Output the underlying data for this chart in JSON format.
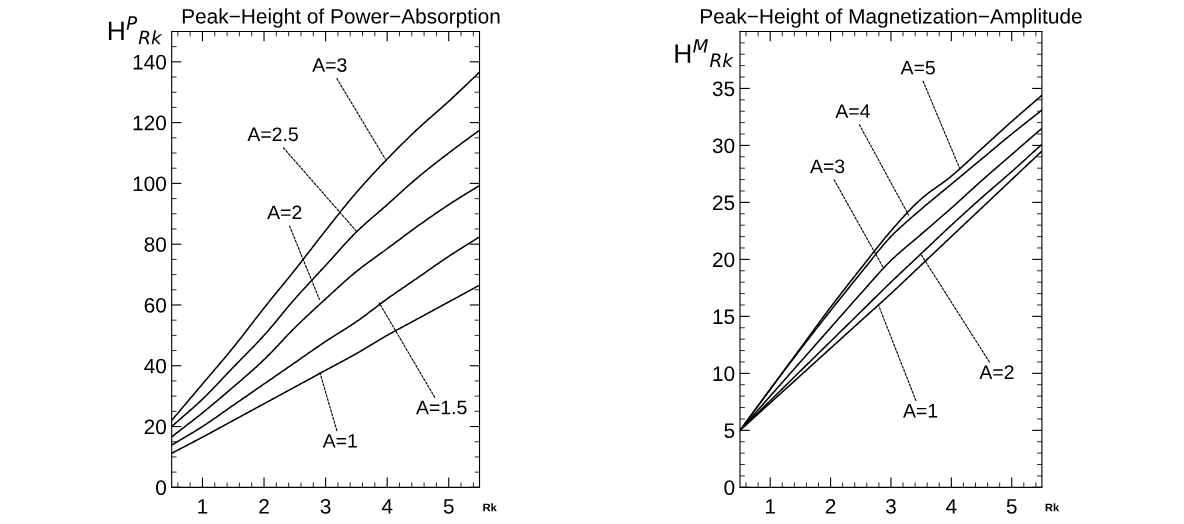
{
  "chart_data": [
    {
      "type": "line",
      "title": "Peak−Height of Power−Absorption",
      "ylabel": "H$^{P}$$_{Rk}$",
      "xlabel": "Rk",
      "x": [
        0.5,
        1,
        1.5,
        2,
        2.5,
        3,
        3.5,
        4,
        4.5,
        5,
        5.5
      ],
      "series": [
        {
          "color": "#000000",
          "values": [
            11.2,
            16.5,
            22,
            27.5,
            33,
            38.5,
            44,
            50,
            55.5,
            61,
            66.5
          ]
        },
        {
          "color": "#000000",
          "values": [
            13.9,
            20,
            27,
            34,
            41,
            48,
            54.5,
            62,
            69,
            76,
            82.4
          ]
        },
        {
          "color": "#000000",
          "values": [
            16.6,
            24.5,
            33,
            42,
            52.5,
            62,
            71,
            78.5,
            86,
            93,
            99.3
          ]
        },
        {
          "color": "#000000",
          "values": [
            20,
            29,
            39.5,
            50,
            62,
            73,
            84,
            93,
            102,
            110,
            117.5
          ]
        },
        {
          "color": "#000000",
          "values": [
            22,
            34,
            46,
            59,
            71.5,
            84.5,
            97,
            108,
            118,
            127,
            136.6
          ]
        }
      ],
      "annotations": [
        {
          "text": "A=1",
          "x": 2.9,
          "y": 38.3
        },
        {
          "text": "A=1.5",
          "x": 3.87,
          "y": 60.7
        },
        {
          "text": "A=2",
          "x": 2.9,
          "y": 61.8
        },
        {
          "text": "A=2.5",
          "x": 3.5,
          "y": 84.3
        },
        {
          "text": "A=3",
          "x": 3.97,
          "y": 108
        }
      ],
      "xlim": [
        0.5,
        5.5
      ],
      "xticks": [
        1,
        2,
        3,
        4,
        5
      ],
      "ylim": [
        0,
        150
      ],
      "yticks": [
        0,
        20,
        40,
        60,
        80,
        100,
        120,
        140
      ],
      "grid": false,
      "legend": false,
      "marker": "none",
      "line_style": "solid"
    },
    {
      "type": "line",
      "title": "Peak−Height of Magnetization−Amplitude",
      "ylabel": "H$^{M}$$_{Rk}$",
      "xlabel": "Rk",
      "x": [
        0.5,
        1,
        1.5,
        2,
        2.5,
        3,
        3.5,
        4,
        4.5,
        5,
        5.5
      ],
      "series": [
        {
          "color": "#000000",
          "values": [
            5,
            7.4,
            9.8,
            12.2,
            14.6,
            17,
            19.5,
            22,
            24.5,
            27,
            29.5
          ]
        },
        {
          "color": "#000000",
          "values": [
            5,
            7.6,
            10.2,
            12.8,
            15.4,
            18,
            20.5,
            23,
            25.4,
            27.7,
            30.1
          ]
        },
        {
          "color": "#000000",
          "values": [
            5,
            8,
            11,
            14,
            17,
            19.9,
            22.2,
            24.5,
            26.9,
            29.2,
            31.5
          ]
        },
        {
          "color": "#000000",
          "values": [
            5,
            8.6,
            12.1,
            15.5,
            18.8,
            22,
            24.4,
            26.6,
            28.8,
            31,
            33.1
          ]
        },
        {
          "color": "#000000",
          "values": [
            5,
            8.6,
            12.2,
            15.8,
            19.2,
            22.5,
            25.3,
            27.3,
            29.7,
            32.1,
            34.4
          ]
        }
      ],
      "annotations": [
        {
          "text": "A=1",
          "x": 2.8,
          "y": 15.9
        },
        {
          "text": "A=2",
          "x": 3.49,
          "y": 20.5
        },
        {
          "text": "A=3",
          "x": 2.87,
          "y": 19.3
        },
        {
          "text": "A=4",
          "x": 3.29,
          "y": 23.9
        },
        {
          "text": "A=5",
          "x": 4.14,
          "y": 27.96
        }
      ],
      "xlim": [
        0.5,
        5.5
      ],
      "xticks": [
        1,
        2,
        3,
        4,
        5
      ],
      "ylim": [
        0,
        40
      ],
      "yticks": [
        0,
        5,
        10,
        15,
        20,
        25,
        30,
        35
      ],
      "grid": false,
      "legend": false,
      "marker": "none",
      "line_style": "solid"
    }
  ]
}
